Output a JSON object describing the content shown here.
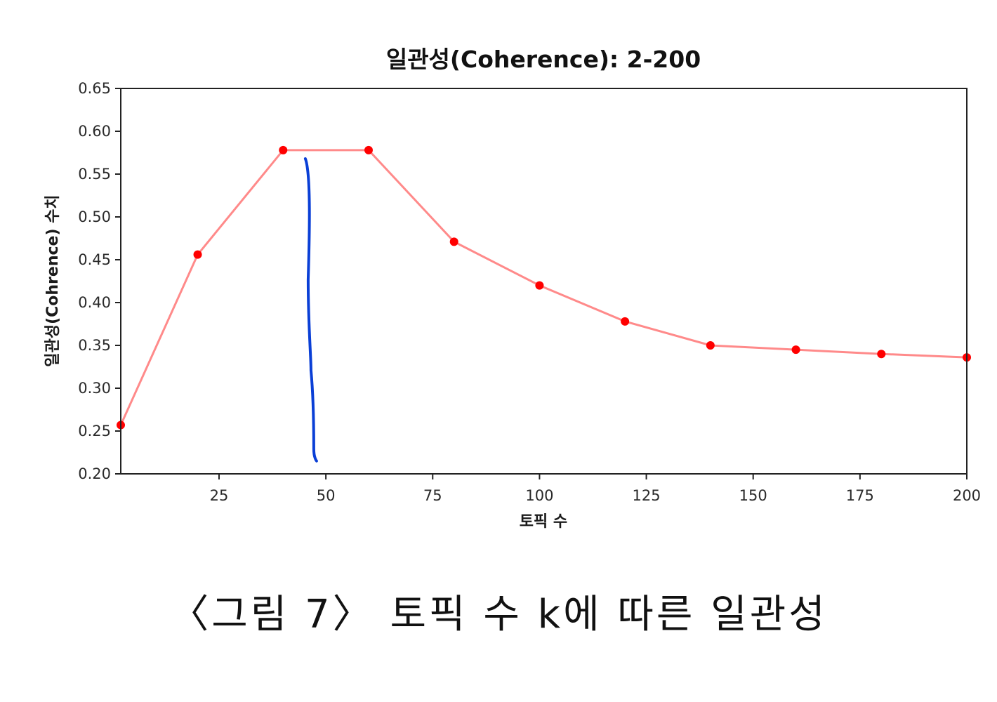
{
  "chart_data": {
    "type": "line",
    "title": "일관성(Coherence): 2-200",
    "xlabel": "토픽 수",
    "ylabel": "일관성(Cohrence) 수치",
    "xlim": [
      2,
      200
    ],
    "ylim": [
      0.2,
      0.65
    ],
    "xticks": [
      25,
      50,
      75,
      100,
      125,
      150,
      175,
      200
    ],
    "yticks": [
      0.2,
      0.25,
      0.3,
      0.35,
      0.4,
      0.45,
      0.5,
      0.55,
      0.6,
      0.65
    ],
    "grid": false,
    "series": [
      {
        "color": "#ff0000",
        "line_color": "#ff8a8a",
        "x": [
          2,
          20,
          40,
          60,
          80,
          100,
          120,
          140,
          160,
          180,
          200
        ],
        "y": [
          0.257,
          0.456,
          0.578,
          0.578,
          0.471,
          0.42,
          0.378,
          0.35,
          0.345,
          0.34,
          0.336
        ]
      }
    ],
    "annotations": [
      {
        "type": "hand-drawn-vertical-line",
        "color": "#0a3fd6",
        "x": 47.5,
        "y_range": [
          0.215,
          0.568
        ]
      }
    ]
  },
  "caption": "〈그림 7〉 토픽 수 k에 따른 일관성"
}
